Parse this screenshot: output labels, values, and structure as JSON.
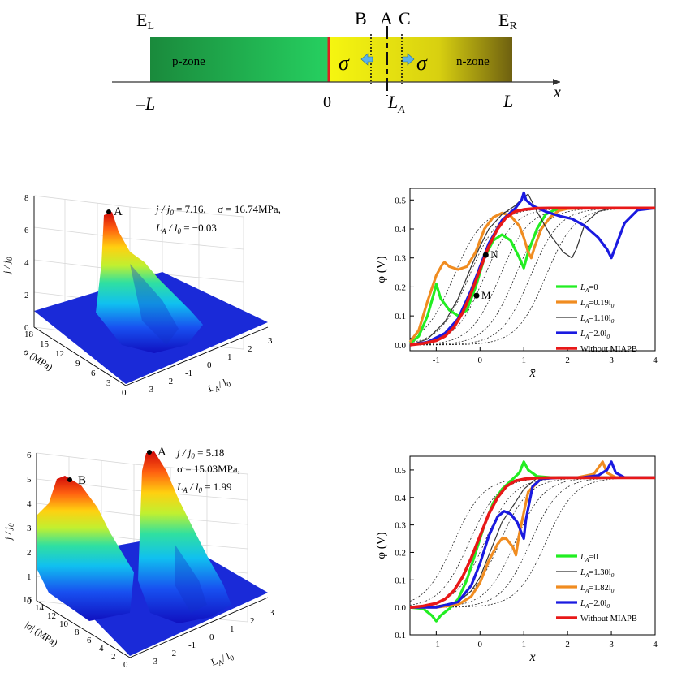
{
  "diagram": {
    "left_electrode": "E",
    "left_sub": "L",
    "right_electrode": "E",
    "right_sub": "R",
    "label_b": "B",
    "label_a": "A",
    "label_c": "C",
    "p_zone": "p-zone",
    "n_zone": "n-zone",
    "sigma_left": "σ",
    "sigma_right": "σ",
    "tick_neg_l": "–L",
    "tick_zero": "0",
    "tick_la_main": "L",
    "tick_la_sub": "A",
    "tick_l": "L",
    "x_axis": "x",
    "colors": {
      "p_zone": "#1db04a",
      "n_zone": "#e8e820",
      "interface": "#e02020"
    }
  },
  "surface_top": {
    "z_label": "j / j",
    "z_label_sub": "0",
    "y_label": "σ (MPa)",
    "x_label": "L",
    "x_label_sub": "A",
    "x_label_rest": "/ l",
    "x_label_rest_sub": "0",
    "z_ticks": [
      "0",
      "2",
      "4",
      "6",
      "8"
    ],
    "sigma_ticks": [
      "0",
      "3",
      "6",
      "9",
      "12",
      "15",
      "18"
    ],
    "la_ticks": [
      "-3",
      "-2",
      "-1",
      "0",
      "1",
      "2",
      "3"
    ],
    "point": "A",
    "annot_1": "j / j",
    "annot_1_sub": "0",
    "annot_1_val": " = 7.16,",
    "annot_1b": "σ = 16.74MPa,",
    "annot_2": "L",
    "annot_2_sub": "A",
    "annot_2_mid": " / l",
    "annot_2_sub2": "0",
    "annot_2_val": " = −0.03"
  },
  "surface_bottom": {
    "z_label": "j / j",
    "z_label_sub": "0",
    "y_label": "|σ| (MPa)",
    "x_label": "L",
    "x_label_sub": "A",
    "x_label_rest": "/ l",
    "x_label_rest_sub": "0",
    "z_ticks": [
      "0",
      "1",
      "2",
      "3",
      "4",
      "5",
      "6"
    ],
    "sigma_ticks": [
      "0",
      "2",
      "4",
      "6",
      "8",
      "10",
      "12",
      "14",
      "16"
    ],
    "la_ticks": [
      "-3",
      "-2",
      "-1",
      "0",
      "1",
      "2",
      "3"
    ],
    "point_a": "A",
    "point_b": "B",
    "annot_1": "j / j",
    "annot_1_sub": "0",
    "annot_1_val": " = 5.18",
    "annot_1b": "σ = 15.03MPa,",
    "annot_2": "L",
    "annot_2_sub": "A",
    "annot_2_mid": " / l",
    "annot_2_sub2": "0",
    "annot_2_val": " = 1.99"
  },
  "chart_data": [
    {
      "type": "line",
      "xlabel": "x̄",
      "ylabel": "φ (V)",
      "xlim": [
        -1.6,
        4
      ],
      "ylim": [
        -0.02,
        0.54
      ],
      "x_ticks": [
        "-1",
        "0",
        "1",
        "2",
        "3",
        "4"
      ],
      "y_ticks": [
        "0.0",
        "0.1",
        "0.2",
        "0.3",
        "0.4",
        "0.5"
      ],
      "points": [
        {
          "label": "N",
          "x": 0.13,
          "y": 0.31
        },
        {
          "label": "M",
          "x": -0.08,
          "y": 0.17
        }
      ],
      "series": [
        {
          "name": "L_A=0",
          "legend_main": "L",
          "legend_sub": "A",
          "legend_rest": "=0",
          "color": "#22ee22",
          "width": 3.2,
          "x": [
            -1.6,
            -1.4,
            -1.2,
            -1.05,
            -1.0,
            -0.9,
            -0.7,
            -0.5,
            -0.3,
            -0.1,
            0.1,
            0.3,
            0.5,
            0.7,
            0.9,
            1.0,
            1.1,
            1.3,
            1.5,
            1.7,
            1.9,
            2.2,
            2.6,
            3.0,
            4.0
          ],
          "y": [
            0.005,
            0.03,
            0.1,
            0.18,
            0.21,
            0.16,
            0.12,
            0.1,
            0.12,
            0.2,
            0.3,
            0.36,
            0.38,
            0.36,
            0.3,
            0.265,
            0.32,
            0.4,
            0.45,
            0.465,
            0.47,
            0.472,
            0.472,
            0.472,
            0.472
          ]
        },
        {
          "name": "L_A=0.19l_0",
          "legend_main": "L",
          "legend_sub": "A",
          "legend_rest": "=0.19l",
          "legend_rest_sub": "0",
          "color": "#f08c20",
          "width": 3.2,
          "x": [
            -1.6,
            -1.4,
            -1.2,
            -1.0,
            -0.85,
            -0.81,
            -0.7,
            -0.5,
            -0.3,
            -0.1,
            0.1,
            0.3,
            0.5,
            0.7,
            0.9,
            1.0,
            1.1,
            1.17,
            1.25,
            1.4,
            1.6,
            1.8,
            2.0,
            2.4,
            4.0
          ],
          "y": [
            0.01,
            0.05,
            0.15,
            0.24,
            0.28,
            0.285,
            0.27,
            0.26,
            0.27,
            0.32,
            0.4,
            0.44,
            0.455,
            0.445,
            0.41,
            0.37,
            0.32,
            0.3,
            0.34,
            0.4,
            0.44,
            0.463,
            0.47,
            0.472,
            0.472
          ]
        },
        {
          "name": "L_A=1.10l_0",
          "legend_main": "L",
          "legend_sub": "A",
          "legend_rest": "=1.10l",
          "legend_rest_sub": "0",
          "color": "#333333",
          "width": 1.2,
          "x": [
            -1.6,
            -1.2,
            -0.8,
            -0.5,
            -0.2,
            0.0,
            0.2,
            0.5,
            0.8,
            1.0,
            1.1,
            1.3,
            1.6,
            1.9,
            2.1,
            2.2,
            2.4,
            2.7,
            3.0,
            4.0
          ],
          "y": [
            0.0,
            0.02,
            0.08,
            0.16,
            0.27,
            0.34,
            0.4,
            0.45,
            0.48,
            0.51,
            0.52,
            0.46,
            0.38,
            0.32,
            0.3,
            0.33,
            0.42,
            0.46,
            0.472,
            0.472
          ]
        },
        {
          "name": "L_A=2.0l_0",
          "legend_main": "L",
          "legend_sub": "A",
          "legend_rest": "=2.0l",
          "legend_rest_sub": "0",
          "color": "#1a1ae0",
          "width": 3.2,
          "x": [
            -1.6,
            -1.2,
            -0.8,
            -0.5,
            -0.2,
            0.0,
            0.2,
            0.5,
            0.8,
            0.95,
            1.0,
            1.05,
            1.2,
            1.5,
            1.8,
            2.1,
            2.4,
            2.7,
            2.9,
            3.0,
            3.1,
            3.3,
            3.6,
            4.0
          ],
          "y": [
            0.0,
            0.01,
            0.04,
            0.09,
            0.19,
            0.27,
            0.35,
            0.43,
            0.47,
            0.5,
            0.525,
            0.5,
            0.48,
            0.46,
            0.445,
            0.435,
            0.41,
            0.37,
            0.33,
            0.3,
            0.34,
            0.42,
            0.465,
            0.472
          ]
        },
        {
          "name": "Without MIAPB",
          "legend_main": "Without MIAPB",
          "color": "#e81818",
          "width": 3.6,
          "x": [
            -1.6,
            -1.3,
            -1.0,
            -0.8,
            -0.6,
            -0.4,
            -0.2,
            0.0,
            0.2,
            0.4,
            0.6,
            0.8,
            1.0,
            1.3,
            1.6,
            2.0,
            4.0
          ],
          "y": [
            0.0,
            0.005,
            0.015,
            0.03,
            0.06,
            0.11,
            0.18,
            0.26,
            0.34,
            0.4,
            0.44,
            0.46,
            0.467,
            0.471,
            0.472,
            0.472,
            0.472
          ]
        }
      ]
    },
    {
      "type": "line",
      "xlabel": "x̄",
      "ylabel": "φ (V)",
      "xlim": [
        -1.6,
        4
      ],
      "ylim": [
        -0.1,
        0.55
      ],
      "x_ticks": [
        "-1",
        "0",
        "1",
        "2",
        "3",
        "4"
      ],
      "y_ticks": [
        "-0.1",
        "0.0",
        "0.1",
        "0.2",
        "0.3",
        "0.4",
        "0.5"
      ],
      "series": [
        {
          "name": "L_A=0",
          "legend_main": "L",
          "legend_sub": "A",
          "legend_rest": "=0",
          "color": "#22ee22",
          "width": 3.2,
          "x": [
            -1.6,
            -1.3,
            -1.1,
            -1.0,
            -0.9,
            -0.7,
            -0.5,
            -0.3,
            -0.1,
            0.1,
            0.3,
            0.5,
            0.7,
            0.9,
            1.0,
            1.1,
            1.3,
            1.6,
            2.0,
            4.0
          ],
          "y": [
            0.0,
            -0.005,
            -0.03,
            -0.05,
            -0.03,
            -0.005,
            0.03,
            0.1,
            0.2,
            0.3,
            0.38,
            0.43,
            0.46,
            0.49,
            0.53,
            0.5,
            0.477,
            0.473,
            0.472,
            0.472
          ]
        },
        {
          "name": "L_A=1.30l_0",
          "legend_main": "L",
          "legend_sub": "A",
          "legend_rest": "=1.30l",
          "legend_rest_sub": "0",
          "color": "#333333",
          "width": 1.2,
          "x": [
            -1.6,
            -1.0,
            -0.5,
            -0.2,
            0.0,
            0.2,
            0.5,
            0.8,
            1.0,
            1.3,
            1.5,
            1.8,
            2.1,
            2.4,
            4.0
          ],
          "y": [
            0.0,
            0.005,
            0.02,
            0.06,
            0.11,
            0.19,
            0.31,
            0.38,
            0.43,
            0.47,
            0.47,
            0.472,
            0.472,
            0.472,
            0.472
          ]
        },
        {
          "name": "L_A=1.82l_0",
          "legend_main": "L",
          "legend_sub": "A",
          "legend_rest": "=1.82l",
          "legend_rest_sub": "0",
          "color": "#f08c20",
          "width": 3.2,
          "x": [
            -1.6,
            -1.0,
            -0.5,
            -0.2,
            0.0,
            0.2,
            0.4,
            0.5,
            0.6,
            0.75,
            0.82,
            0.9,
            1.1,
            1.4,
            1.8,
            2.2,
            2.6,
            2.8,
            2.9,
            3.1,
            4.0
          ],
          "y": [
            0.0,
            0.0,
            0.01,
            0.04,
            0.09,
            0.17,
            0.23,
            0.25,
            0.25,
            0.22,
            0.19,
            0.27,
            0.42,
            0.47,
            0.472,
            0.472,
            0.485,
            0.53,
            0.49,
            0.473,
            0.472
          ]
        },
        {
          "name": "L_A=2.0l_0",
          "legend_main": "L",
          "legend_sub": "A",
          "legend_rest": "=2.0l",
          "legend_rest_sub": "0",
          "color": "#1a1ae0",
          "width": 3.2,
          "x": [
            -1.6,
            -1.0,
            -0.5,
            -0.2,
            0.0,
            0.2,
            0.4,
            0.55,
            0.7,
            0.85,
            0.95,
            1.0,
            1.05,
            1.2,
            1.4,
            1.8,
            2.3,
            2.7,
            2.9,
            3.0,
            3.1,
            3.3,
            4.0
          ],
          "y": [
            0.0,
            0.0,
            0.02,
            0.08,
            0.16,
            0.26,
            0.33,
            0.35,
            0.34,
            0.31,
            0.27,
            0.25,
            0.32,
            0.44,
            0.468,
            0.472,
            0.472,
            0.48,
            0.5,
            0.53,
            0.49,
            0.473,
            0.472
          ]
        },
        {
          "name": "Without MIAPB",
          "legend_main": "Without MIAPB",
          "color": "#e81818",
          "width": 3.6,
          "x": [
            -1.6,
            -1.3,
            -1.0,
            -0.8,
            -0.6,
            -0.4,
            -0.2,
            0.0,
            0.2,
            0.4,
            0.6,
            0.8,
            1.0,
            1.3,
            1.6,
            2.0,
            4.0
          ],
          "y": [
            0.0,
            0.005,
            0.015,
            0.03,
            0.06,
            0.11,
            0.18,
            0.26,
            0.34,
            0.4,
            0.44,
            0.46,
            0.467,
            0.471,
            0.472,
            0.472,
            0.472
          ]
        }
      ]
    }
  ]
}
